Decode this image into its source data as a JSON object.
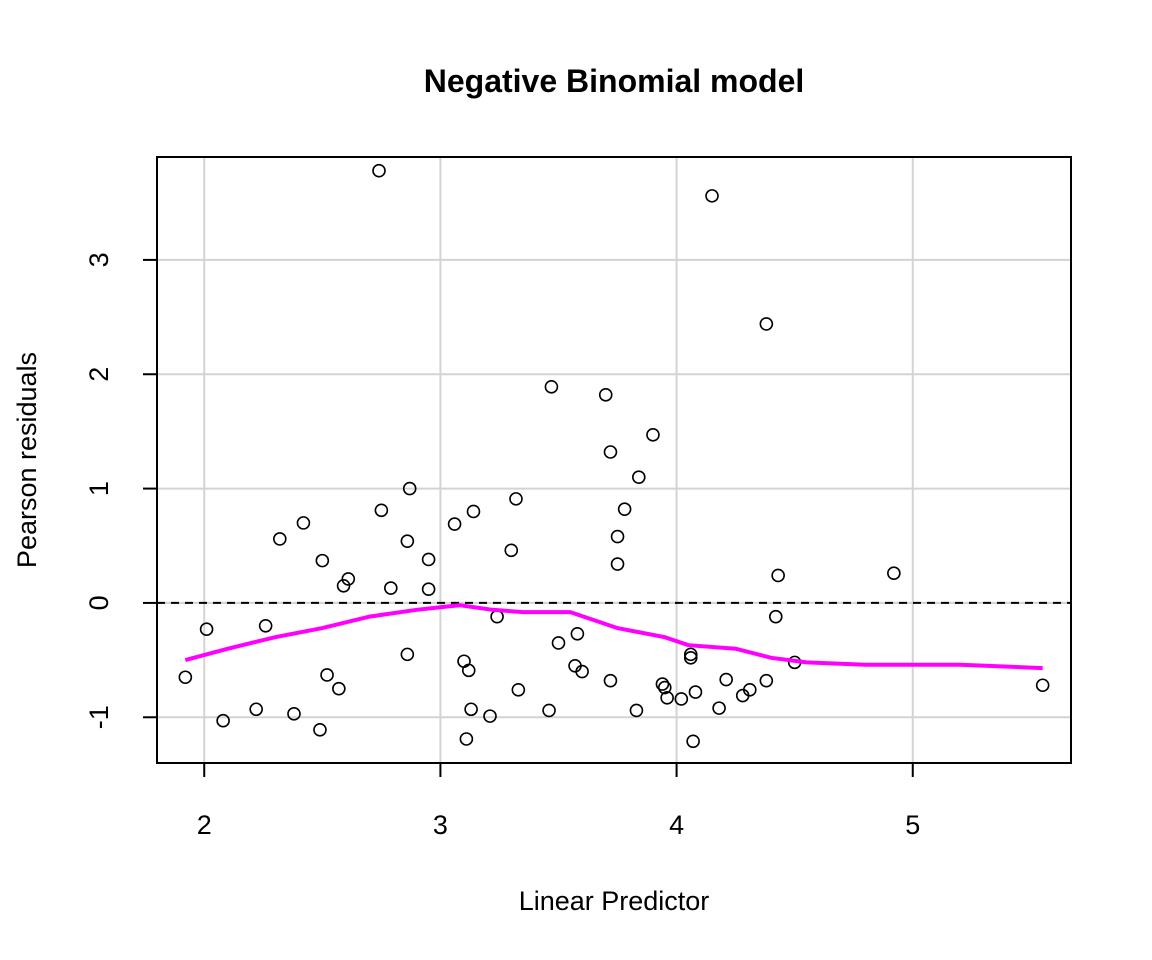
{
  "chart_data": {
    "type": "scatter",
    "title": "Negative Binomial model",
    "xlabel": "Linear Predictor",
    "ylabel": "Pearson residuals",
    "xlim": [
      1.8,
      5.67
    ],
    "ylim": [
      -1.4,
      3.9
    ],
    "xticks": [
      2,
      3,
      4,
      5
    ],
    "yticks": [
      -1,
      0,
      1,
      2,
      3
    ],
    "grid": true,
    "reference_line": {
      "y": 0,
      "style": "dashed"
    },
    "points": [
      {
        "x": 1.92,
        "y": -0.65
      },
      {
        "x": 2.01,
        "y": -0.23
      },
      {
        "x": 2.08,
        "y": -1.03
      },
      {
        "x": 2.22,
        "y": -0.93
      },
      {
        "x": 2.26,
        "y": -0.2
      },
      {
        "x": 2.32,
        "y": 0.56
      },
      {
        "x": 2.38,
        "y": -0.97
      },
      {
        "x": 2.42,
        "y": 0.7
      },
      {
        "x": 2.49,
        "y": -1.11
      },
      {
        "x": 2.5,
        "y": 0.37
      },
      {
        "x": 2.52,
        "y": -0.63
      },
      {
        "x": 2.57,
        "y": -0.75
      },
      {
        "x": 2.59,
        "y": 0.15
      },
      {
        "x": 2.61,
        "y": 0.21
      },
      {
        "x": 2.74,
        "y": 3.78
      },
      {
        "x": 2.75,
        "y": 0.81
      },
      {
        "x": 2.79,
        "y": 0.13
      },
      {
        "x": 2.86,
        "y": 0.54
      },
      {
        "x": 2.86,
        "y": -0.45
      },
      {
        "x": 2.87,
        "y": 1.0
      },
      {
        "x": 2.95,
        "y": 0.38
      },
      {
        "x": 2.95,
        "y": 0.12
      },
      {
        "x": 3.06,
        "y": 0.69
      },
      {
        "x": 3.1,
        "y": -0.51
      },
      {
        "x": 3.11,
        "y": -1.19
      },
      {
        "x": 3.12,
        "y": -0.59
      },
      {
        "x": 3.13,
        "y": -0.93
      },
      {
        "x": 3.14,
        "y": 0.8
      },
      {
        "x": 3.21,
        "y": -0.99
      },
      {
        "x": 3.24,
        "y": -0.12
      },
      {
        "x": 3.3,
        "y": 0.46
      },
      {
        "x": 3.32,
        "y": 0.91
      },
      {
        "x": 3.33,
        "y": -0.76
      },
      {
        "x": 3.46,
        "y": -0.94
      },
      {
        "x": 3.47,
        "y": 1.89
      },
      {
        "x": 3.5,
        "y": -0.35
      },
      {
        "x": 3.57,
        "y": -0.55
      },
      {
        "x": 3.58,
        "y": -0.27
      },
      {
        "x": 3.6,
        "y": -0.6
      },
      {
        "x": 3.7,
        "y": 1.82
      },
      {
        "x": 3.72,
        "y": -0.68
      },
      {
        "x": 3.72,
        "y": 1.32
      },
      {
        "x": 3.75,
        "y": 0.58
      },
      {
        "x": 3.75,
        "y": 0.34
      },
      {
        "x": 3.78,
        "y": 0.82
      },
      {
        "x": 3.83,
        "y": -0.94
      },
      {
        "x": 3.84,
        "y": 1.1
      },
      {
        "x": 3.9,
        "y": 1.47
      },
      {
        "x": 3.94,
        "y": -0.71
      },
      {
        "x": 3.95,
        "y": -0.74
      },
      {
        "x": 3.96,
        "y": -0.83
      },
      {
        "x": 4.02,
        "y": -0.84
      },
      {
        "x": 4.06,
        "y": -0.48
      },
      {
        "x": 4.06,
        "y": -0.45
      },
      {
        "x": 4.07,
        "y": -1.21
      },
      {
        "x": 4.08,
        "y": -0.78
      },
      {
        "x": 4.15,
        "y": 3.56
      },
      {
        "x": 4.18,
        "y": -0.92
      },
      {
        "x": 4.21,
        "y": -0.67
      },
      {
        "x": 4.28,
        "y": -0.81
      },
      {
        "x": 4.31,
        "y": -0.76
      },
      {
        "x": 4.38,
        "y": -0.68
      },
      {
        "x": 4.38,
        "y": 2.44
      },
      {
        "x": 4.42,
        "y": -0.12
      },
      {
        "x": 4.43,
        "y": 0.24
      },
      {
        "x": 4.5,
        "y": -0.52
      },
      {
        "x": 4.92,
        "y": 0.26
      },
      {
        "x": 5.55,
        "y": -0.72
      }
    ],
    "smooth_line": {
      "color": "#ff00ff",
      "points": [
        {
          "x": 1.92,
          "y": -0.5
        },
        {
          "x": 2.1,
          "y": -0.4
        },
        {
          "x": 2.3,
          "y": -0.3
        },
        {
          "x": 2.5,
          "y": -0.22
        },
        {
          "x": 2.7,
          "y": -0.12
        },
        {
          "x": 2.9,
          "y": -0.06
        },
        {
          "x": 3.08,
          "y": -0.02
        },
        {
          "x": 3.22,
          "y": -0.06
        },
        {
          "x": 3.35,
          "y": -0.08
        },
        {
          "x": 3.55,
          "y": -0.08
        },
        {
          "x": 3.75,
          "y": -0.22
        },
        {
          "x": 3.95,
          "y": -0.3
        },
        {
          "x": 4.05,
          "y": -0.37
        },
        {
          "x": 4.25,
          "y": -0.4
        },
        {
          "x": 4.4,
          "y": -0.48
        },
        {
          "x": 4.55,
          "y": -0.52
        },
        {
          "x": 4.8,
          "y": -0.54
        },
        {
          "x": 5.2,
          "y": -0.54
        },
        {
          "x": 5.55,
          "y": -0.57
        }
      ]
    }
  }
}
